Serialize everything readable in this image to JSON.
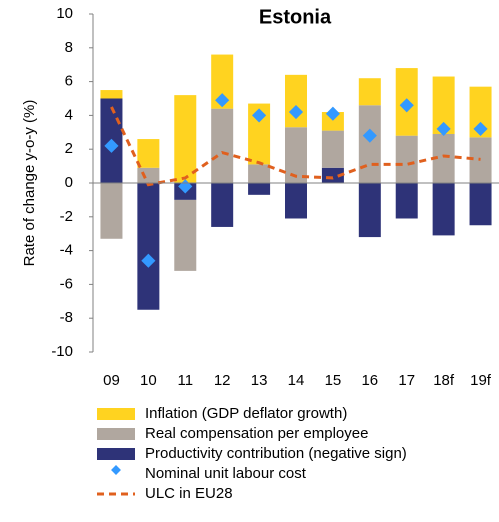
{
  "chart_data": {
    "type": "bar",
    "title": "Estonia",
    "y_label": "Rate of change y-o-y (%)",
    "categories": [
      "09",
      "10",
      "11",
      "12",
      "13",
      "14",
      "15",
      "16",
      "17",
      "18f",
      "19f"
    ],
    "ylim": [
      -10,
      10
    ],
    "yticks": [
      -10,
      -8,
      -6,
      -4,
      -2,
      0,
      2,
      4,
      6,
      8,
      10
    ],
    "series": [
      {
        "name": "Productivity contribution (negative sign)",
        "type": "bar",
        "color": "#2e3378",
        "values": [
          5.0,
          -7.5,
          -1.0,
          -2.6,
          -0.7,
          -2.1,
          0.9,
          -3.2,
          -2.1,
          -3.1,
          -2.5
        ]
      },
      {
        "name": "Real compensation per employee",
        "type": "bar",
        "color": "#b0a79f",
        "values": [
          -3.3,
          0.9,
          -4.2,
          4.4,
          1.1,
          3.3,
          2.2,
          4.6,
          2.8,
          2.9,
          2.7
        ]
      },
      {
        "name": "Inflation (GDP deflator growth)",
        "type": "bar",
        "color": "#ffd320",
        "values": [
          0.5,
          1.7,
          5.2,
          3.2,
          3.6,
          3.1,
          1.1,
          1.6,
          4.0,
          3.4,
          3.0
        ]
      },
      {
        "name": "Nominal unit labour cost",
        "type": "scatter",
        "color": "#3399ff",
        "values": [
          2.2,
          -4.6,
          -0.2,
          4.9,
          4.0,
          4.2,
          4.1,
          2.8,
          4.6,
          3.2,
          3.2
        ]
      },
      {
        "name": "ULC in EU28",
        "type": "line",
        "color": "#e0601e",
        "values": [
          4.5,
          -0.1,
          0.3,
          1.8,
          1.2,
          0.4,
          0.3,
          1.1,
          1.1,
          1.6,
          1.4
        ]
      }
    ]
  }
}
